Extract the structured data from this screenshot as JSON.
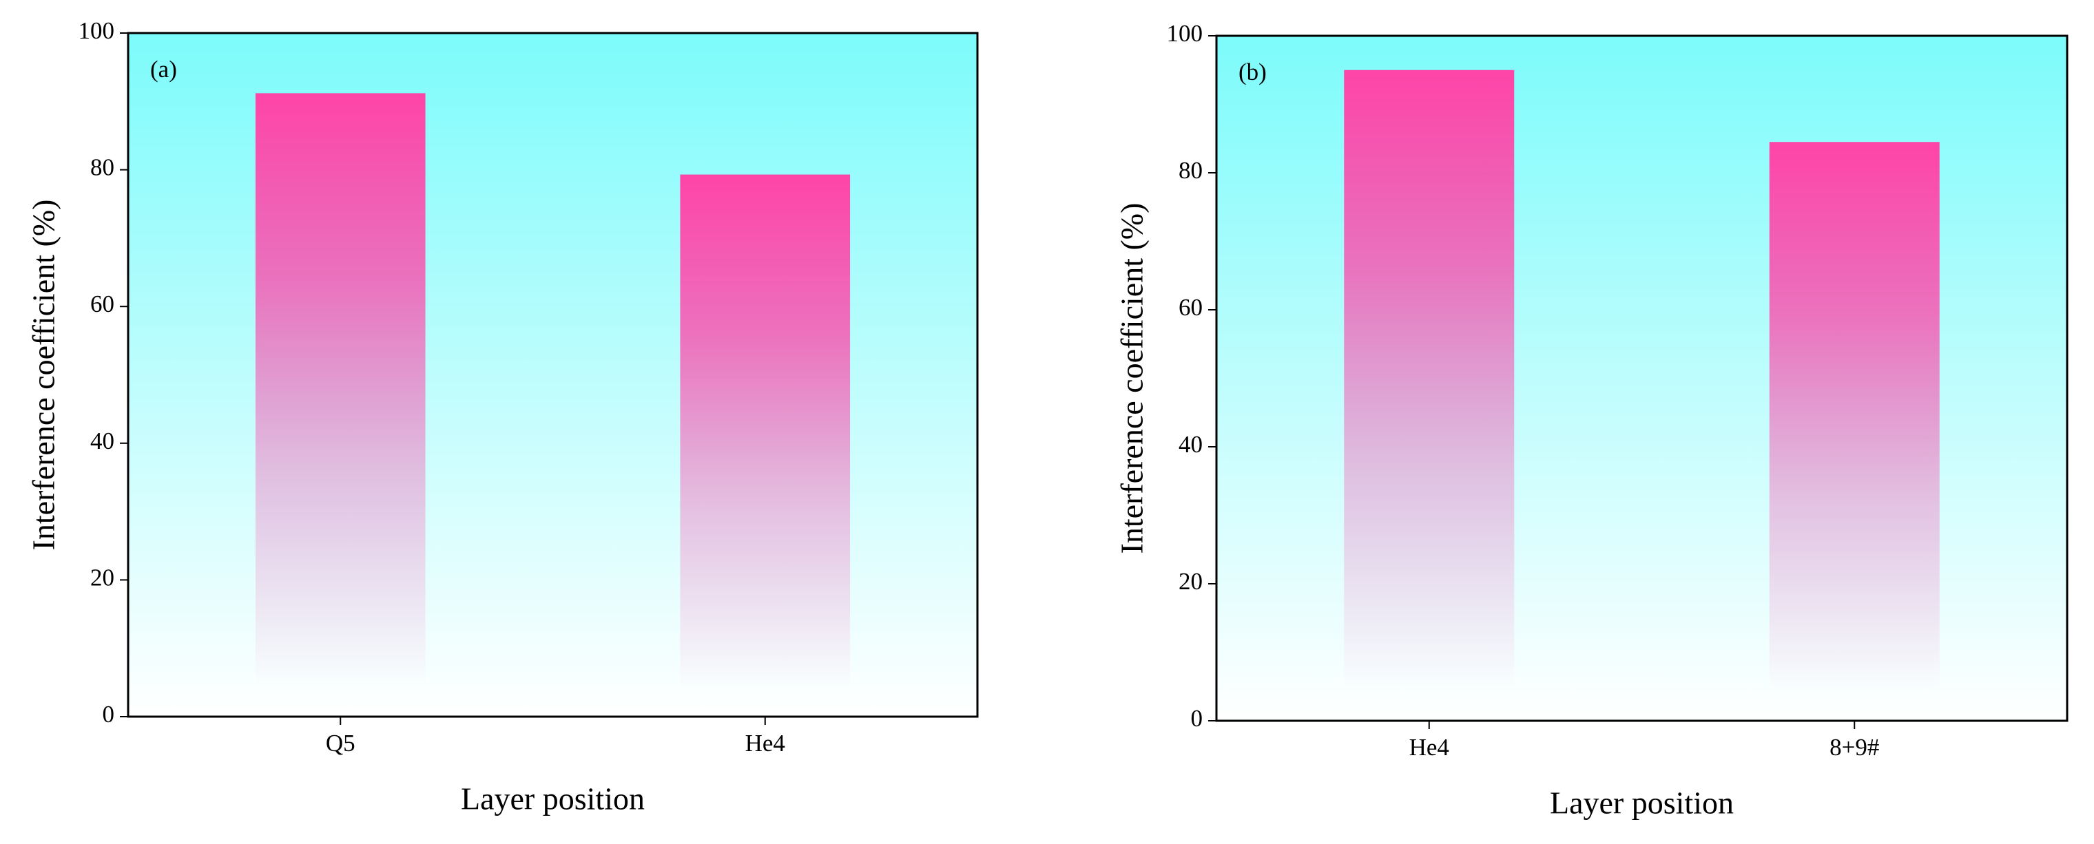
{
  "chart_data": [
    {
      "type": "bar",
      "annotation": "(a)",
      "xlabel": "Layer position",
      "ylabel": "Interference coefficient (%)",
      "categories": [
        "Q5",
        "He4"
      ],
      "values": [
        91.2,
        79.3
      ],
      "color": "#ff44a8",
      "ylim": [
        0,
        100
      ],
      "yticks": [
        0,
        20,
        40,
        60,
        80,
        100
      ]
    },
    {
      "type": "bar",
      "annotation": "(b)",
      "xlabel": "Layer position",
      "ylabel": "Interference coefficient (%)",
      "categories": [
        "He4",
        "8+9#"
      ],
      "values": [
        95,
        84.5
      ],
      "color": "#ff44a8",
      "ylim": [
        0,
        100
      ],
      "yticks": [
        0,
        20,
        40,
        60,
        80,
        100
      ]
    }
  ]
}
